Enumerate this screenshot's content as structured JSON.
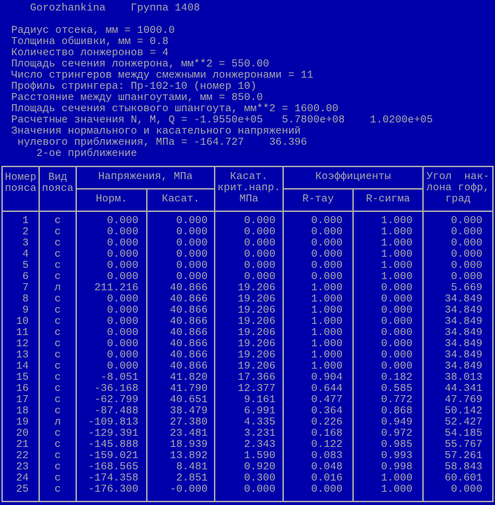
{
  "title": {
    "user": "Gorozhankina",
    "group": "Группа 1408"
  },
  "params": [
    "Радиус отсека, мм = 1000.0",
    "Толщина обшивки, мм = 0.8",
    "Количество лонжеронов = 4",
    "Площадь сечения лонжерона, мм**2 = 550.00",
    "Число стрингеров между смежными лонжеронами = 11",
    "Профиль стрингера: Пр-102-10 (номер 10)",
    "Расстояние между шпангоутами, мм = 850.0",
    "Площадь сечения стыкового шпангоута, мм**2 = 1600.00",
    "Расчетные значения N, M, Q = -1.9550e+05   5.7800e+08    1.0200e+05",
    "Значения нормального и касательного напряжений",
    " нулевого приближения, МПа = -164.727    36.396",
    "    2-ое приближение"
  ],
  "table": {
    "headers": {
      "number": "Номер\nпояса",
      "type": "Вид\nпояса",
      "stress": "Напряжения, МПа",
      "norm": "Норм.",
      "shear": "Касат.",
      "crit": "Касат.\nкрит.напр.\nМПа",
      "coef": "Коэффициенты",
      "r_tau": "R-тау",
      "r_sigma": "R-сигма",
      "angle": "Угол  нак-\nлона гофр,\nград"
    },
    "rows": [
      [
        "1",
        "с",
        "0.000",
        "0.000",
        "0.000",
        "0.000",
        "1.000",
        "0.000"
      ],
      [
        "2",
        "с",
        "0.000",
        "0.000",
        "0.000",
        "0.000",
        "1.000",
        "0.000"
      ],
      [
        "3",
        "с",
        "0.000",
        "0.000",
        "0.000",
        "0.000",
        "1.000",
        "0.000"
      ],
      [
        "4",
        "с",
        "0.000",
        "0.000",
        "0.000",
        "0.000",
        "1.000",
        "0.000"
      ],
      [
        "5",
        "с",
        "0.000",
        "0.000",
        "0.000",
        "0.000",
        "1.000",
        "0.000"
      ],
      [
        "6",
        "с",
        "0.000",
        "0.000",
        "0.000",
        "0.000",
        "1.000",
        "0.000"
      ],
      [
        "7",
        "л",
        "211.216",
        "40.866",
        "19.206",
        "1.000",
        "0.000",
        "5.669"
      ],
      [
        "8",
        "с",
        "0.000",
        "40.866",
        "19.206",
        "1.000",
        "0.000",
        "34.849"
      ],
      [
        "9",
        "с",
        "0.000",
        "40.866",
        "19.206",
        "1.000",
        "0.000",
        "34.849"
      ],
      [
        "10",
        "с",
        "0.000",
        "40.866",
        "19.206",
        "1.000",
        "0.000",
        "34.849"
      ],
      [
        "11",
        "с",
        "0.000",
        "40.866",
        "19.206",
        "1.000",
        "0.000",
        "34.849"
      ],
      [
        "12",
        "с",
        "0.000",
        "40.866",
        "19.206",
        "1.000",
        "0.000",
        "34.849"
      ],
      [
        "13",
        "с",
        "0.000",
        "40.866",
        "19.206",
        "1.000",
        "0.000",
        "34.849"
      ],
      [
        "14",
        "с",
        "0.000",
        "40.866",
        "19.206",
        "1.000",
        "0.000",
        "34.849"
      ],
      [
        "15",
        "с",
        "-8.051",
        "41.820",
        "17.366",
        "0.904",
        "0.182",
        "38.013"
      ],
      [
        "16",
        "с",
        "-36.168",
        "41.790",
        "12.377",
        "0.644",
        "0.585",
        "44.341"
      ],
      [
        "17",
        "с",
        "-62.799",
        "40.651",
        "9.161",
        "0.477",
        "0.772",
        "47.769"
      ],
      [
        "18",
        "с",
        "-87.488",
        "38.479",
        "6.991",
        "0.364",
        "0.868",
        "50.142"
      ],
      [
        "19",
        "л",
        "-109.813",
        "27.380",
        "4.335",
        "0.226",
        "0.949",
        "52.427"
      ],
      [
        "20",
        "с",
        "-129.391",
        "23.481",
        "3.231",
        "0.168",
        "0.972",
        "54.185"
      ],
      [
        "21",
        "с",
        "-145.888",
        "18.939",
        "2.343",
        "0.122",
        "0.985",
        "55.767"
      ],
      [
        "22",
        "с",
        "-159.021",
        "13.892",
        "1.590",
        "0.083",
        "0.993",
        "57.261"
      ],
      [
        "23",
        "с",
        "-168.565",
        "8.481",
        "0.920",
        "0.048",
        "0.998",
        "58.843"
      ],
      [
        "24",
        "с",
        "-174.358",
        "2.851",
        "0.300",
        "0.016",
        "1.000",
        "60.601"
      ],
      [
        "25",
        "с",
        "-176.300",
        "-0.000",
        "0.000",
        "0.000",
        "1.000",
        "0.000"
      ]
    ]
  },
  "colors": {
    "background": "#0000AA",
    "text": "#AAAAAA"
  }
}
